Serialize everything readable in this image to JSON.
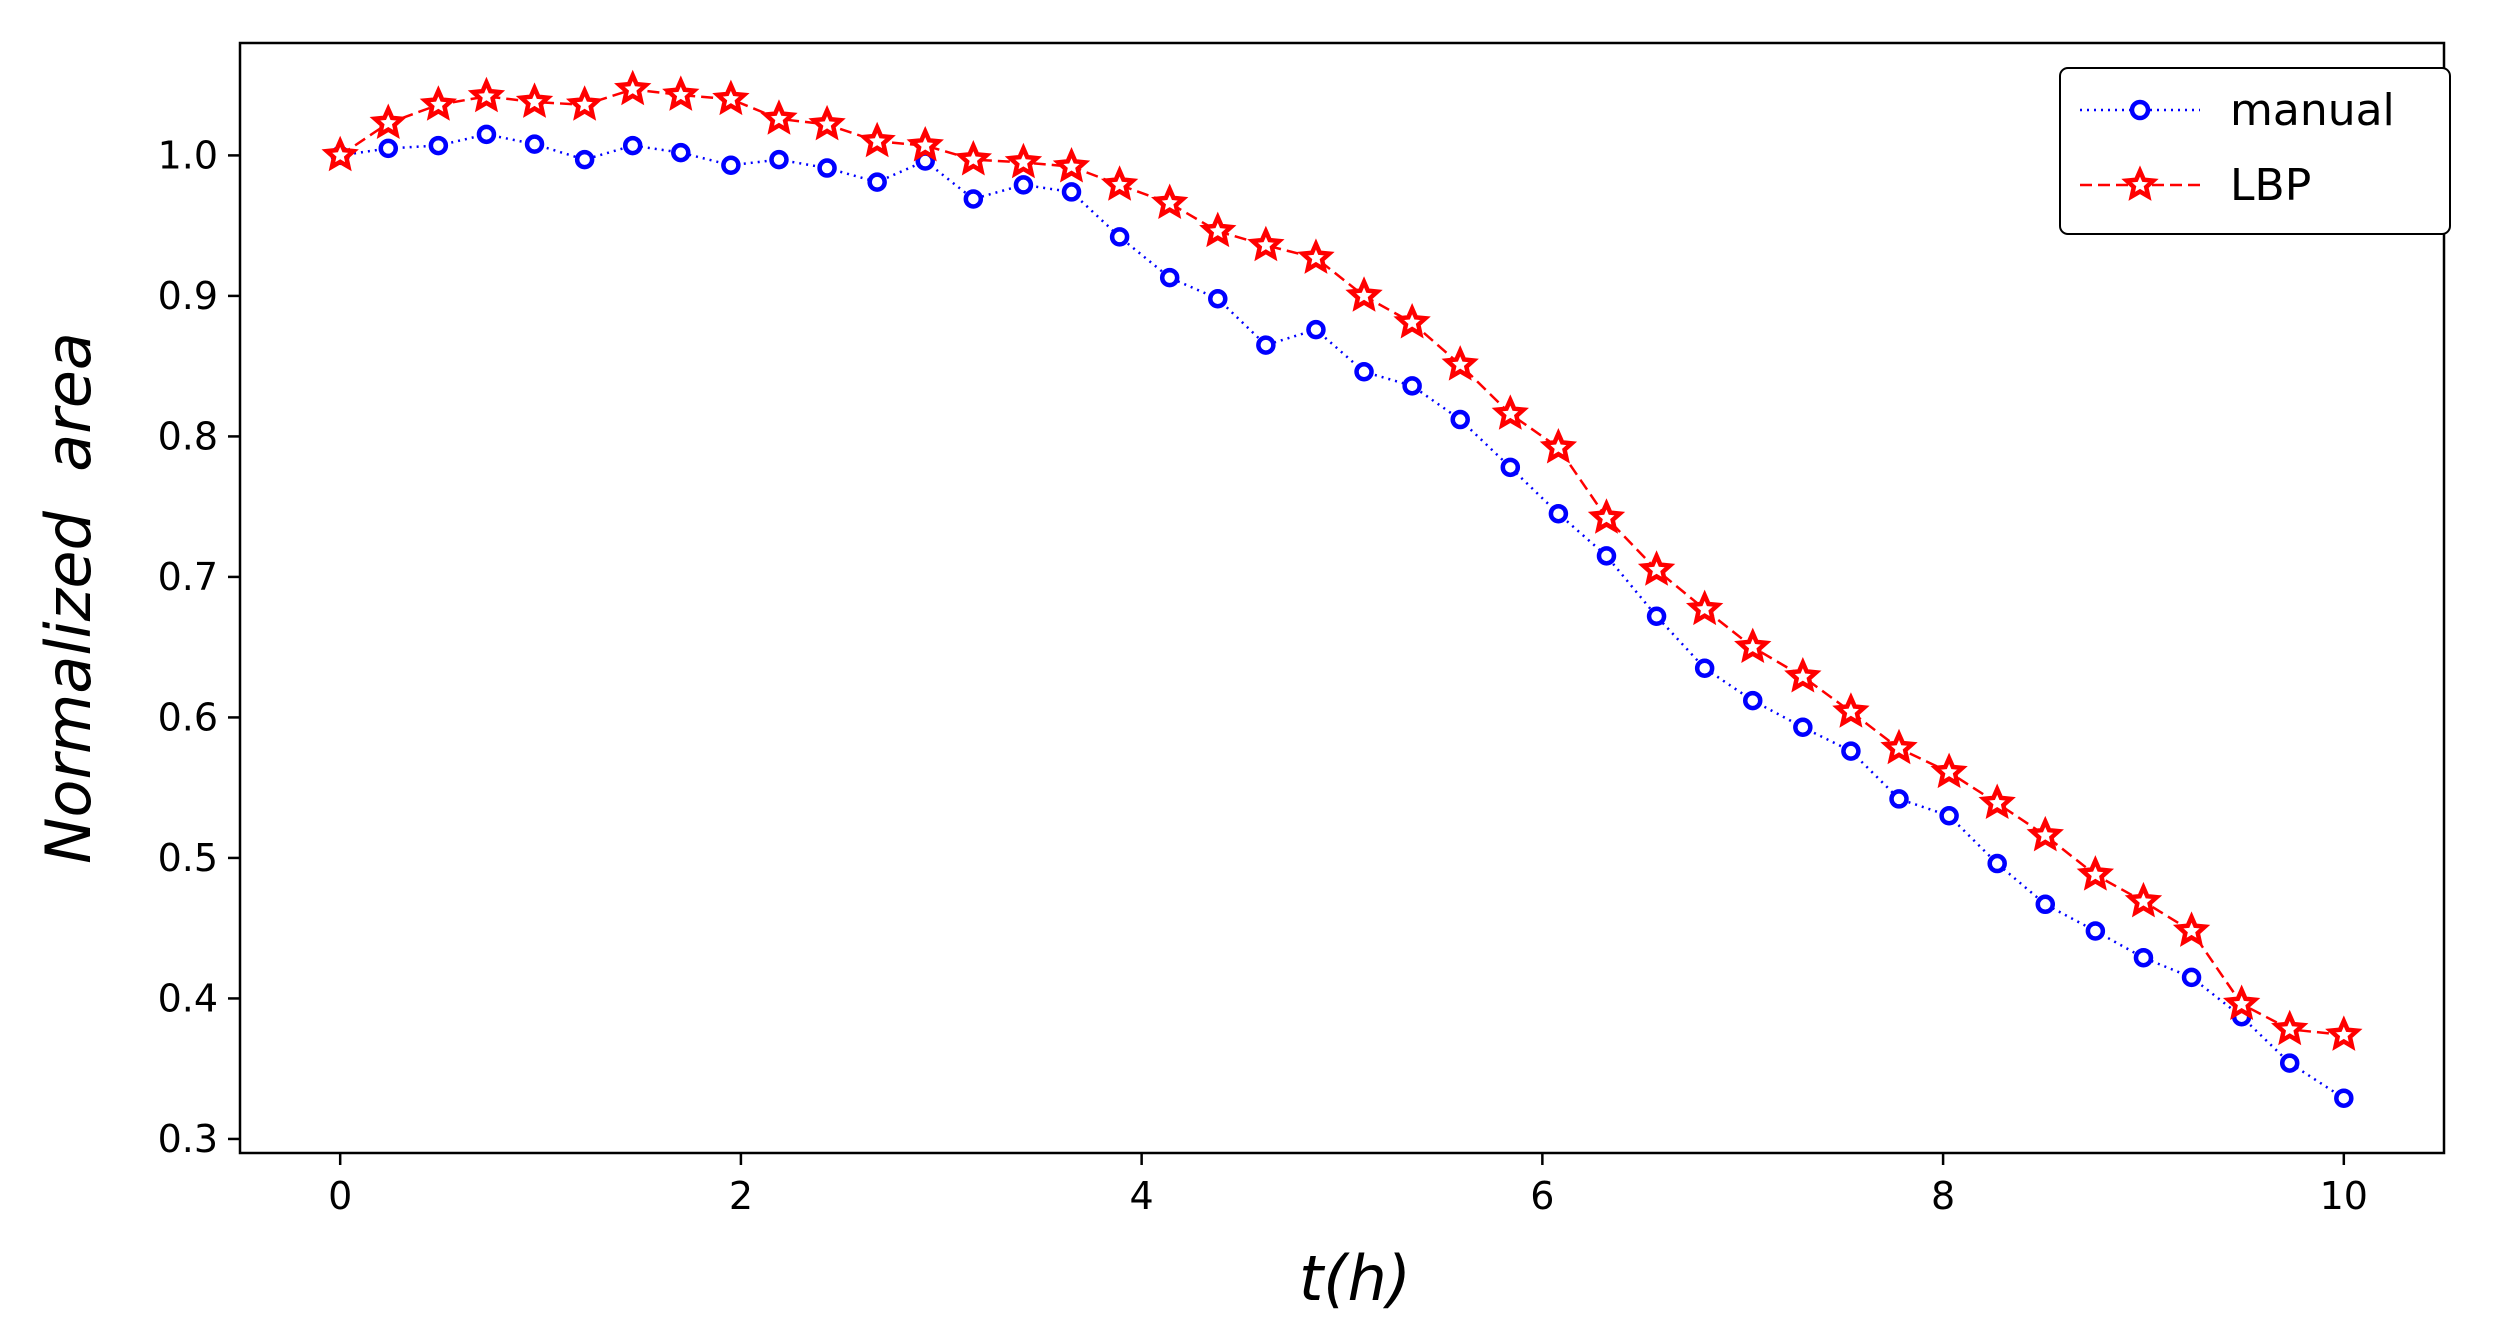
{
  "chart_data": {
    "type": "line",
    "title": "",
    "xlabel": "t(h)",
    "ylabel": "Normalized  area",
    "xlim": [
      -0.5,
      10.5
    ],
    "ylim": [
      0.29,
      1.08
    ],
    "xticks": [
      0,
      2,
      4,
      6,
      8,
      10
    ],
    "xtick_labels": [
      "0",
      "2",
      "4",
      "6",
      "8",
      "10"
    ],
    "yticks": [
      0.3,
      0.4,
      0.5,
      0.6,
      0.7,
      0.8,
      0.9,
      1.0
    ],
    "ytick_labels": [
      "0.3",
      "0.4",
      "0.5",
      "0.6",
      "0.7",
      "0.8",
      "0.9",
      "1.0"
    ],
    "grid": false,
    "legend": "top-right",
    "x": [
      0,
      0.24,
      0.49,
      0.73,
      0.97,
      1.22,
      1.46,
      1.7,
      1.95,
      2.19,
      2.43,
      2.68,
      2.92,
      3.16,
      3.41,
      3.65,
      3.89,
      4.14,
      4.38,
      4.62,
      4.87,
      5.11,
      5.35,
      5.59,
      5.84,
      6.08,
      6.32,
      6.57,
      6.81,
      7.05,
      7.3,
      7.54,
      7.78,
      8.03,
      8.27,
      8.51,
      8.76,
      9.0,
      9.24,
      9.49,
      9.73,
      10.0
    ],
    "series": [
      {
        "name": "manual",
        "color": "#0000ff",
        "marker": "circle",
        "linestyle": "dotted",
        "values": [
          1.0,
          1.005,
          1.007,
          1.015,
          1.008,
          0.997,
          1.007,
          1.002,
          0.993,
          0.997,
          0.991,
          0.981,
          0.996,
          0.969,
          0.979,
          0.974,
          0.942,
          0.913,
          0.898,
          0.865,
          0.876,
          0.846,
          0.836,
          0.812,
          0.778,
          0.745,
          0.715,
          0.672,
          0.635,
          0.612,
          0.593,
          0.576,
          0.542,
          0.53,
          0.496,
          0.467,
          0.448,
          0.429,
          0.415,
          0.387,
          0.354,
          0.329
        ]
      },
      {
        "name": "LBP",
        "color": "#ff0000",
        "marker": "star",
        "linestyle": "dashed",
        "values": [
          1.0,
          1.023,
          1.036,
          1.042,
          1.038,
          1.036,
          1.047,
          1.043,
          1.04,
          1.026,
          1.022,
          1.01,
          1.007,
          0.997,
          0.995,
          0.992,
          0.979,
          0.966,
          0.946,
          0.936,
          0.927,
          0.9,
          0.881,
          0.851,
          0.816,
          0.792,
          0.742,
          0.705,
          0.677,
          0.65,
          0.629,
          0.604,
          0.578,
          0.561,
          0.539,
          0.516,
          0.488,
          0.469,
          0.448,
          0.396,
          0.378,
          0.374
        ]
      }
    ]
  }
}
